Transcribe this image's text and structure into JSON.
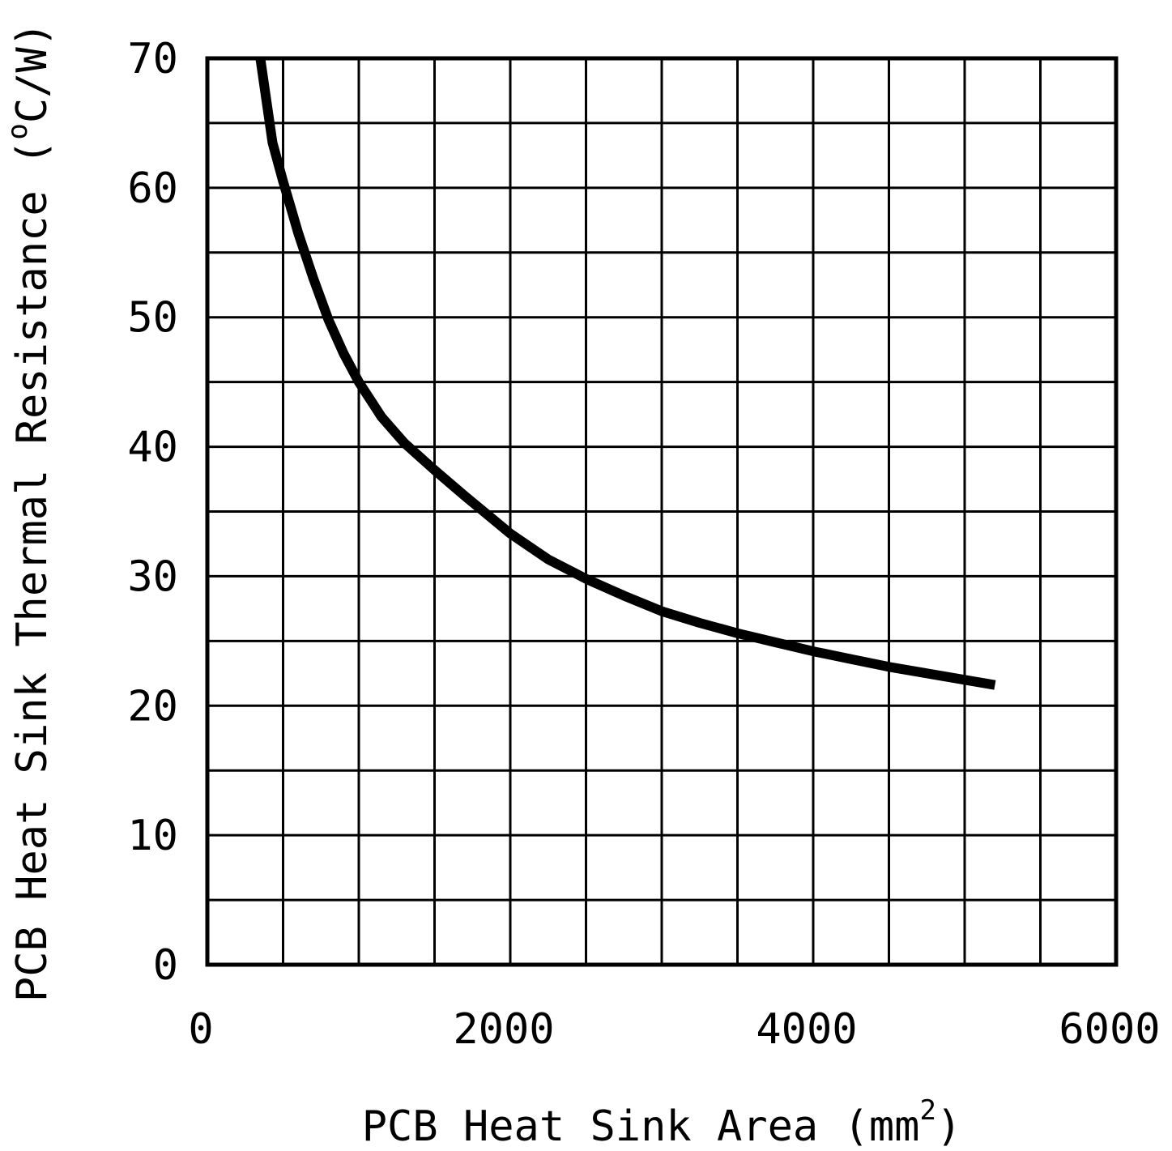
{
  "chart_data": {
    "type": "line",
    "title": "",
    "xlabel": "PCB Heat Sink Area (mm",
    "xlabel_sup": "2",
    "xlabel_close": ")",
    "ylabel": "PCB Heat Sink Thermal Resistance (",
    "ylabel_sup": "o",
    "ylabel_unit": "C/W)",
    "xlim": [
      0,
      6000
    ],
    "ylim": [
      0,
      70
    ],
    "x_grid_step": 500,
    "y_grid_step": 5,
    "x_ticks": [
      {
        "value": 0,
        "label": "0"
      },
      {
        "value": 2000,
        "label": "2000"
      },
      {
        "value": 4000,
        "label": "4000"
      },
      {
        "value": 6000,
        "label": "6000"
      }
    ],
    "y_ticks": [
      {
        "value": 0,
        "label": "0"
      },
      {
        "value": 10,
        "label": "10"
      },
      {
        "value": 20,
        "label": "20"
      },
      {
        "value": 30,
        "label": "30"
      },
      {
        "value": 40,
        "label": "40"
      },
      {
        "value": 50,
        "label": "50"
      },
      {
        "value": 60,
        "label": "60"
      },
      {
        "value": 70,
        "label": "70"
      }
    ],
    "series": [
      {
        "name": "Thermal Resistance",
        "color": "#000000",
        "x": [
          350,
          430,
          500,
          550,
          600,
          700,
          800,
          900,
          1000,
          1150,
          1300,
          1500,
          1700,
          2000,
          2250,
          2500,
          2750,
          3000,
          3250,
          3500,
          3750,
          4000,
          4250,
          4500,
          4750,
          5000,
          5200
        ],
        "y": [
          70,
          63.5,
          60.5,
          58.5,
          56.5,
          53,
          49.8,
          47.2,
          45,
          42.3,
          40.3,
          38.2,
          36.2,
          33.3,
          31.3,
          29.8,
          28.5,
          27.3,
          26.4,
          25.6,
          24.9,
          24.2,
          23.6,
          23,
          22.5,
          22,
          21.6
        ]
      }
    ]
  }
}
